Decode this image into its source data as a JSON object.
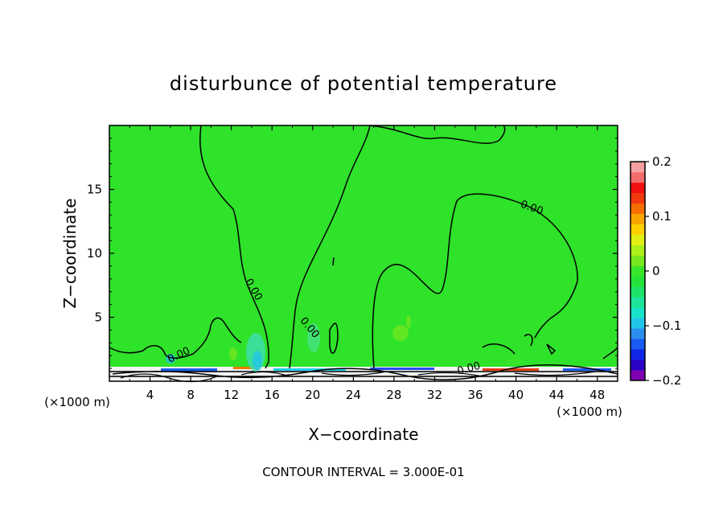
{
  "chart_data": {
    "type": "heatmap",
    "title": "disturbunce of potential temperature",
    "xlabel": "X−coordinate",
    "ylabel": "Z−coordinate",
    "x_unit": "(×1000 m)",
    "x_unit_right": "(×1000 m)",
    "xlim": [
      0,
      50
    ],
    "ylim": [
      0,
      20
    ],
    "x_ticks": [
      4,
      8,
      12,
      16,
      20,
      24,
      28,
      32,
      36,
      40,
      44,
      48
    ],
    "y_ticks": [
      5,
      10,
      15
    ],
    "contour_label": "0.00",
    "contour_level": 0.0,
    "footer": "CONTOUR INTERVAL = 3.000E-01",
    "colorbar": {
      "range": [
        -0.2,
        0.2
      ],
      "tick_values": [
        0.2,
        0.1,
        0,
        -0.1,
        -0.2
      ],
      "tick_labels": [
        "0.2",
        "0.1",
        "0",
        "−0.1",
        "−0.2"
      ],
      "colors": [
        "#7f00b3",
        "#2b00c6",
        "#0f26e8",
        "#1a59f2",
        "#2c8ff0",
        "#22c4e8",
        "#18e3c8",
        "#1de49a",
        "#1fe26a",
        "#25e23a",
        "#39e52a",
        "#77e81f",
        "#aef01a",
        "#e2ef14",
        "#fed200",
        "#fba500",
        "#f56f00",
        "#f03a0e",
        "#ef1010",
        "#f26d6d",
        "#f5a0a0"
      ]
    },
    "background_value": 0.0,
    "background_color": "#2fe22a"
  }
}
